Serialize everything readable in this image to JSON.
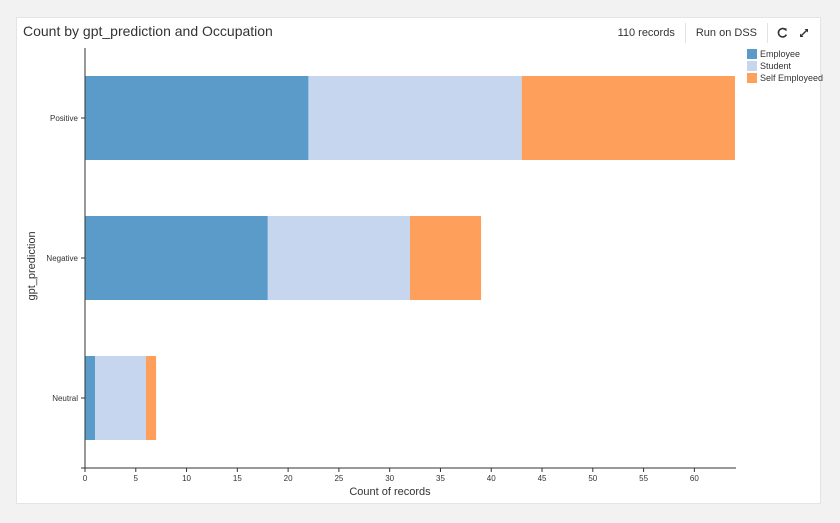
{
  "header": {
    "title": "Count by gpt_prediction and Occupation",
    "records": "110 records",
    "run_label": "Run on DSS"
  },
  "icons": {
    "refresh": "refresh-icon",
    "expand": "expand-icon"
  },
  "chart_data": {
    "type": "bar",
    "orientation": "horizontal",
    "stacked": true,
    "title": "Count by gpt_prediction and Occupation",
    "xlabel": "Count of records",
    "ylabel": "gpt_prediction",
    "categories": [
      "Positive",
      "Negative",
      "Neutral"
    ],
    "series": [
      {
        "name": "Employee",
        "color": "#5b9bc9",
        "values": [
          22,
          18,
          1
        ]
      },
      {
        "name": "Student",
        "color": "#c5d6ee",
        "values": [
          21,
          14,
          5
        ]
      },
      {
        "name": "Self Employeed",
        "color": "#fe9f5b",
        "values": [
          21,
          7,
          1
        ]
      }
    ],
    "xlim": [
      0,
      64
    ],
    "xticks": [
      0,
      5,
      10,
      15,
      20,
      25,
      30,
      35,
      40,
      45,
      50,
      55,
      60
    ],
    "grid": false,
    "legend_position": "top-right"
  }
}
